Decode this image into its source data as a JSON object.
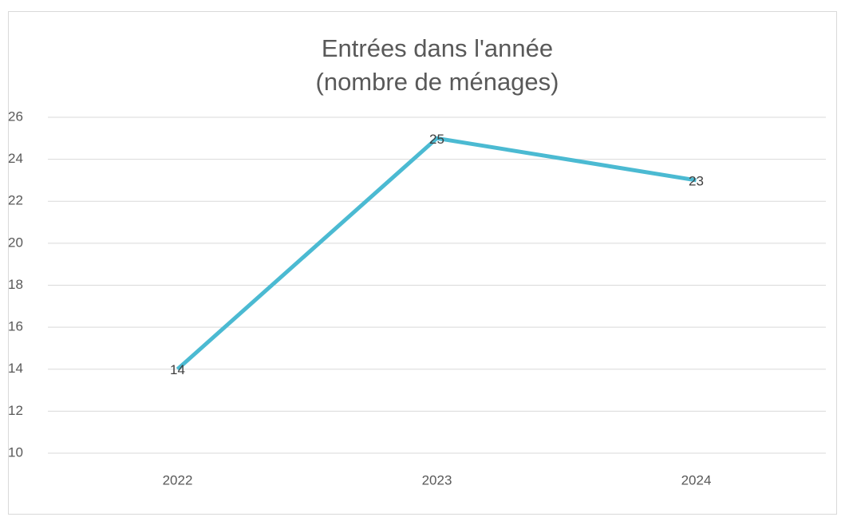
{
  "chart_data": {
    "type": "line",
    "title": "Entrées dans l'année",
    "subtitle": "(nombre de ménages)",
    "categories": [
      "2022",
      "2023",
      "2024"
    ],
    "values": [
      14,
      25,
      23
    ],
    "color": "#4bbad2",
    "ylim": [
      10,
      26
    ],
    "yticks": [
      10,
      12,
      14,
      16,
      18,
      20,
      22,
      24,
      26
    ],
    "grid": true
  }
}
